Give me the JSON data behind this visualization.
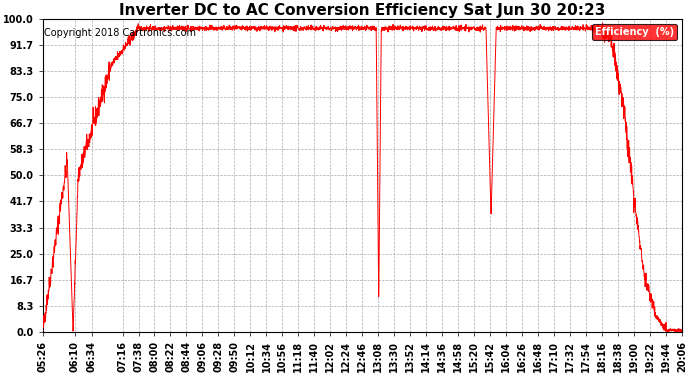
{
  "title": "Inverter DC to AC Conversion Efficiency Sat Jun 30 20:23",
  "copyright": "Copyright 2018 Cartronics.com",
  "legend_label": "Efficiency  (%)",
  "legend_bg": "#ff0000",
  "legend_text_color": "#ffffff",
  "line_color": "#ff0000",
  "background_color": "#ffffff",
  "grid_color": "#aaaaaa",
  "ylim": [
    0.0,
    100.0
  ],
  "yticks": [
    0.0,
    8.3,
    16.7,
    25.0,
    33.3,
    41.7,
    50.0,
    58.3,
    66.7,
    75.0,
    83.3,
    91.7,
    100.0
  ],
  "ytick_labels": [
    "0.0",
    "8.3",
    "16.7",
    "25.0",
    "33.3",
    "41.7",
    "50.0",
    "58.3",
    "66.7",
    "75.0",
    "83.3",
    "91.7",
    "100.0"
  ],
  "xtick_labels": [
    "05:26",
    "06:10",
    "06:34",
    "07:16",
    "07:38",
    "08:00",
    "08:22",
    "08:44",
    "09:06",
    "09:28",
    "09:50",
    "10:12",
    "10:34",
    "10:56",
    "11:18",
    "11:40",
    "12:02",
    "12:24",
    "12:46",
    "13:08",
    "13:30",
    "13:52",
    "14:14",
    "14:36",
    "14:58",
    "15:20",
    "15:42",
    "16:04",
    "16:26",
    "16:48",
    "17:10",
    "17:32",
    "17:54",
    "18:16",
    "18:38",
    "19:00",
    "19:22",
    "19:44",
    "20:06"
  ],
  "title_fontsize": 11,
  "tick_fontsize": 7,
  "copyright_fontsize": 7,
  "t_start_str": "05:26",
  "t_end_str": "20:06"
}
